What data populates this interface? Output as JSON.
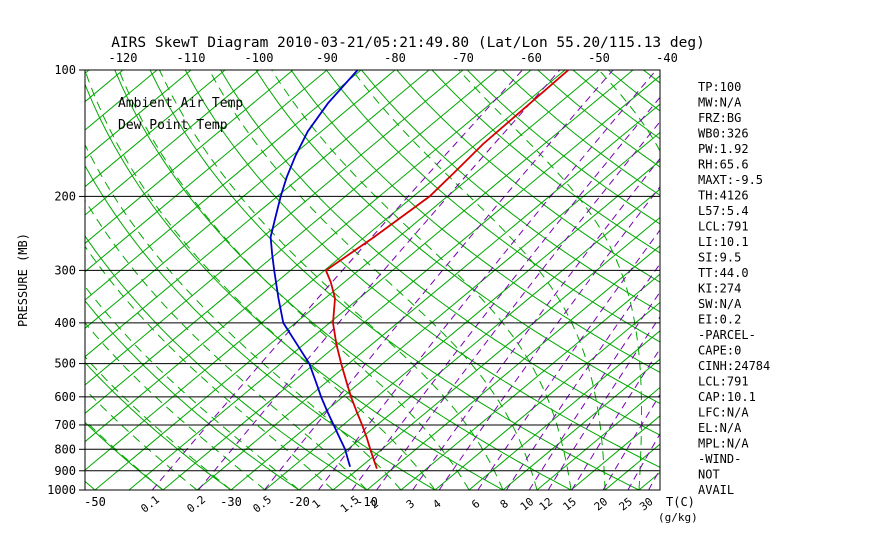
{
  "title": "AIRS SkewT Diagram 2010-03-21/05:21:49.80 (Lat/Lon 55.20/115.13 deg)",
  "legend": {
    "air_temp": "Ambient Air Temp",
    "dew_point": "Dew Point Temp"
  },
  "colors": {
    "temp": "#d40000",
    "dewpoint": "#0000c8",
    "grid_green": "#00a800",
    "mixing_purple": "#7a00b4",
    "mixing_label": "#5533cc",
    "tick_red": "#d40000",
    "axis_black": "#000000"
  },
  "stats_panel": {
    "lines": [
      "TP:100",
      "MW:N/A",
      "FRZ:BG",
      "WB0:326",
      "PW:1.92",
      "RH:65.6",
      "MAXT:-9.5",
      "TH:4126",
      "L57:5.4",
      "LCL:791",
      "LI:10.1",
      "SI:9.5",
      "TT:44.0",
      "KI:274",
      "SW:N/A",
      "EI:0.2",
      "-PARCEL-",
      "CAPE:0",
      "CINH:24784",
      "LCL:791",
      "CAP:10.1",
      "LFC:N/A",
      "EL:N/A",
      "MPL:N/A",
      "-WIND-",
      "NOT",
      "AVAIL"
    ]
  },
  "chart_data": {
    "type": "line",
    "title": "AIRS SkewT Diagram 2010-03-21/05:21:49.80 (Lat/Lon 55.20/115.13 deg)",
    "x_axis": {
      "unit_label": "T(C)",
      "top_ticks": [
        -120,
        -110,
        -100,
        -90,
        -80,
        -70,
        -60,
        -50,
        -40
      ],
      "bottom_ticks": [
        -50,
        -30,
        -20,
        -10
      ]
    },
    "y_axis": {
      "label": "PRESSURE (MB)",
      "scale": "log",
      "range": [
        100,
        1000
      ],
      "ticks": [
        100,
        200,
        300,
        400,
        500,
        600,
        700,
        800,
        900,
        1000
      ]
    },
    "mixing_unit_label": "(g/kg)",
    "grid": {
      "isotherm_min": -125,
      "isotherm_max": 35,
      "isotherm_step": 5,
      "dry_adiabat_min": -50,
      "dry_adiabat_max": 180,
      "dry_adiabat_step": 10,
      "moist_adiabat_surface_temps": [
        -40,
        -35,
        -30,
        -25,
        -20,
        -15,
        -10,
        -5,
        0,
        5,
        10,
        15,
        20,
        25,
        30,
        35,
        40,
        45
      ],
      "mixing_ratios_g_kg": [
        0.1,
        0.2,
        0.5,
        1,
        1.5,
        2,
        3,
        4,
        6,
        8,
        10,
        12,
        15,
        20,
        25,
        30
      ]
    },
    "series": [
      {
        "name": "Ambient Air Temp",
        "color_key": "temp",
        "points_p_t": [
          [
            100,
            -54.5
          ],
          [
            125,
            -54.2
          ],
          [
            150,
            -54.0
          ],
          [
            175,
            -53.2
          ],
          [
            200,
            -52.6
          ],
          [
            250,
            -53.6
          ],
          [
            300,
            -54.8
          ],
          [
            320,
            -52.0
          ],
          [
            350,
            -48.5
          ],
          [
            400,
            -44.5
          ],
          [
            450,
            -40.2
          ],
          [
            500,
            -36.1
          ],
          [
            550,
            -32.3
          ],
          [
            600,
            -28.8
          ],
          [
            650,
            -25.4
          ],
          [
            700,
            -22.2
          ],
          [
            750,
            -19.3
          ],
          [
            800,
            -16.7
          ],
          [
            850,
            -14.2
          ],
          [
            890,
            -12.3
          ]
        ]
      },
      {
        "name": "Dew Point Temp",
        "color_key": "dewpoint",
        "points_p_t": [
          [
            100,
            -85.5
          ],
          [
            120,
            -84.0
          ],
          [
            140,
            -82.0
          ],
          [
            160,
            -79.5
          ],
          [
            180,
            -77.0
          ],
          [
            200,
            -74.5
          ],
          [
            225,
            -71.5
          ],
          [
            250,
            -68.8
          ],
          [
            275,
            -65.5
          ],
          [
            300,
            -62.4
          ],
          [
            350,
            -56.8
          ],
          [
            400,
            -51.8
          ],
          [
            450,
            -46.0
          ],
          [
            500,
            -40.8
          ],
          [
            550,
            -36.8
          ],
          [
            600,
            -33.2
          ],
          [
            650,
            -29.7
          ],
          [
            700,
            -26.4
          ],
          [
            750,
            -23.3
          ],
          [
            800,
            -20.4
          ],
          [
            850,
            -18.0
          ],
          [
            880,
            -16.6
          ]
        ]
      }
    ]
  }
}
